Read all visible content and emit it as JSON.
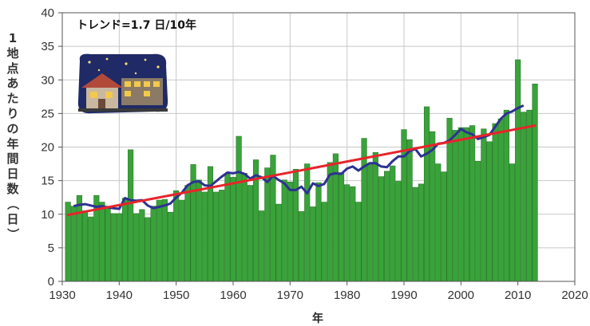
{
  "chart_data": {
    "type": "bar",
    "title": "",
    "xlabel": "年",
    "ylabel": "1地点あたりの年間日数（日）",
    "annotation": "トレンド=1.7 日/10年",
    "xlim": [
      1930,
      2020
    ],
    "ylim": [
      0,
      40
    ],
    "xticks": [
      1930,
      1940,
      1950,
      1960,
      1970,
      1980,
      1990,
      2000,
      2010,
      2020
    ],
    "yticks": [
      0,
      5,
      10,
      15,
      20,
      25,
      30,
      35,
      40
    ],
    "grid": true,
    "colors": {
      "bar": "#3aa23a",
      "bar_edge": "#2a7a2a",
      "moving_average": "#2e3192",
      "trend": "#e8242a"
    },
    "x": [
      1931,
      1932,
      1933,
      1934,
      1935,
      1936,
      1937,
      1938,
      1939,
      1940,
      1941,
      1942,
      1943,
      1944,
      1945,
      1946,
      1947,
      1948,
      1949,
      1950,
      1951,
      1952,
      1953,
      1954,
      1955,
      1956,
      1957,
      1958,
      1959,
      1960,
      1961,
      1962,
      1963,
      1964,
      1965,
      1966,
      1967,
      1968,
      1969,
      1970,
      1971,
      1972,
      1973,
      1974,
      1975,
      1976,
      1977,
      1978,
      1979,
      1980,
      1981,
      1982,
      1983,
      1984,
      1985,
      1986,
      1987,
      1988,
      1989,
      1990,
      1991,
      1992,
      1993,
      1994,
      1995,
      1996,
      1997,
      1998,
      1999,
      2000,
      2001,
      2002,
      2003,
      2004,
      2005,
      2006,
      2007,
      2008,
      2009,
      2010,
      2011,
      2012,
      2013
    ],
    "values": [
      11.8,
      11.2,
      12.8,
      10.5,
      9.6,
      12.8,
      11.8,
      11.2,
      10.1,
      10.1,
      12.4,
      19.6,
      10.1,
      10.7,
      9.5,
      11.2,
      12.1,
      12.2,
      10.3,
      13.5,
      12.1,
      14.3,
      17.4,
      15.1,
      13.3,
      17.1,
      13.3,
      13.6,
      16.0,
      15.5,
      21.6,
      16.1,
      14.3,
      18.1,
      10.5,
      16.9,
      18.8,
      11.5,
      15.1,
      14.8,
      16.7,
      10.4,
      17.5,
      11.1,
      14.7,
      11.8,
      17.7,
      19.0,
      16.2,
      14.4,
      14.1,
      11.8,
      21.3,
      17.5,
      19.2,
      15.6,
      16.4,
      17.2,
      14.9,
      22.6,
      21.1,
      14.0,
      14.5,
      26.0,
      22.3,
      17.5,
      16.3,
      24.3,
      22.5,
      22.9,
      22.9,
      23.2,
      17.9,
      22.7,
      20.8,
      23.5,
      24.2,
      25.5,
      17.5,
      33.0,
      25.2,
      25.5,
      29.4
    ],
    "moving_average": {
      "x": [
        1932,
        1933,
        1934,
        1935,
        1936,
        1937,
        1938,
        1939,
        1940,
        1941,
        1942,
        1943,
        1944,
        1945,
        1946,
        1947,
        1948,
        1949,
        1950,
        1951,
        1952,
        1953,
        1954,
        1955,
        1956,
        1957,
        1958,
        1959,
        1960,
        1961,
        1962,
        1963,
        1964,
        1965,
        1966,
        1967,
        1968,
        1969,
        1970,
        1971,
        1972,
        1973,
        1974,
        1975,
        1976,
        1977,
        1978,
        1979,
        1980,
        1981,
        1982,
        1983,
        1984,
        1985,
        1986,
        1987,
        1988,
        1989,
        1990,
        1991,
        1992,
        1993,
        1994,
        1995,
        1996,
        1997,
        1998,
        1999,
        2000,
        2001,
        2002,
        2003,
        2004,
        2005,
        2006,
        2007,
        2008,
        2009,
        2010,
        2011
      ],
      "values": [
        11.2,
        11.4,
        11.5,
        11.3,
        11.1,
        11.2,
        11.0,
        10.9,
        10.8,
        12.4,
        12.1,
        12.0,
        12.1,
        11.3,
        10.9,
        11.1,
        11.3,
        11.6,
        12.5,
        13.2,
        14.3,
        14.8,
        14.9,
        14.3,
        14.2,
        14.9,
        15.6,
        16.2,
        16.1,
        16.3,
        16.0,
        15.3,
        15.8,
        15.5,
        14.8,
        15.7,
        15.1,
        14.6,
        13.6,
        13.6,
        14.1,
        13.1,
        14.6,
        14.2,
        14.5,
        15.9,
        16.1,
        16.0,
        16.8,
        17.1,
        16.5,
        17.1,
        17.6,
        17.6,
        17.1,
        17.0,
        17.9,
        18.6,
        18.6,
        19.4,
        19.7,
        18.6,
        19.0,
        19.6,
        20.5,
        20.6,
        21.0,
        21.8,
        22.7,
        22.2,
        21.9,
        21.2,
        21.5,
        21.8,
        23.0,
        24.2,
        25.0,
        25.3,
        25.8,
        26.2
      ]
    },
    "trend": {
      "x": [
        1931,
        2013
      ],
      "values": [
        9.9,
        23.2
      ]
    }
  }
}
